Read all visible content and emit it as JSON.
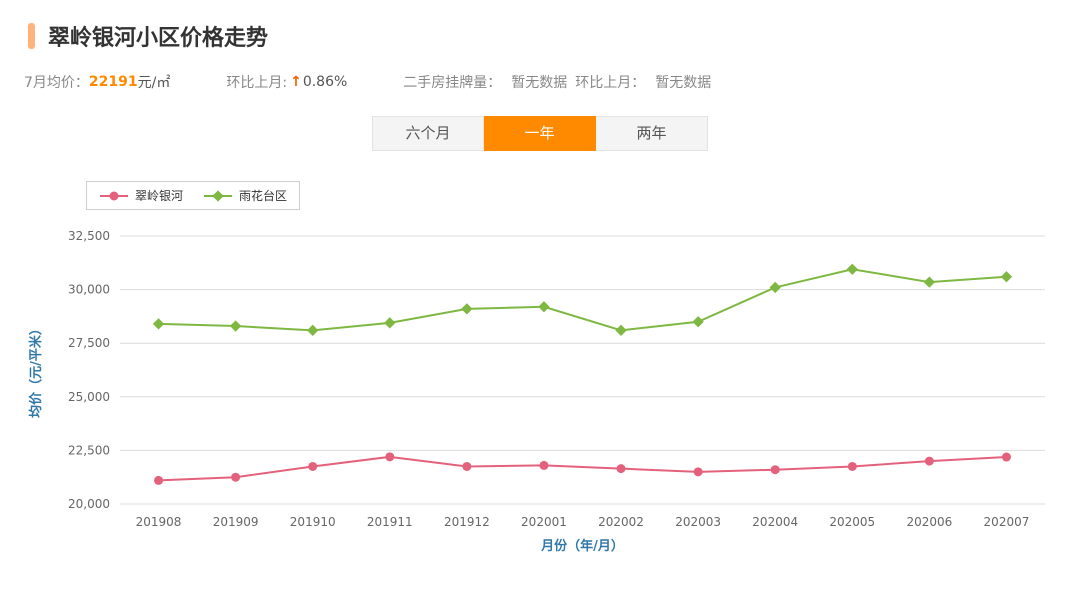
{
  "page": {
    "title": "翠岭银河小区价格走势"
  },
  "stats": {
    "avg_label": "7月均价：",
    "avg_value": "22191",
    "avg_unit": "元/㎡",
    "mom_label": "环比上月:",
    "mom_arrow": "↑",
    "mom_value": "0.86%",
    "listing_label": "二手房挂牌量：",
    "listing_value": "暂无数据",
    "listing_mom_label": "环比上月：",
    "listing_mom_value": "暂无数据"
  },
  "tabs": [
    {
      "label": "六个月",
      "active": false
    },
    {
      "label": "一年",
      "active": true
    },
    {
      "label": "两年",
      "active": false
    }
  ],
  "legend": [
    {
      "label": "翠岭银河",
      "color": "#e4617b",
      "marker": "circle"
    },
    {
      "label": "雨花台区",
      "color": "#7eb842",
      "marker": "diamond"
    }
  ],
  "chart_data": {
    "type": "line",
    "x": [
      "201908",
      "201909",
      "201910",
      "201911",
      "201912",
      "202001",
      "202002",
      "202003",
      "202004",
      "202005",
      "202006",
      "202007"
    ],
    "series": [
      {
        "name": "翠岭银河",
        "color": "#e4617b",
        "marker": "circle",
        "values": [
          21100,
          21250,
          21750,
          22200,
          21750,
          21800,
          21650,
          21500,
          21600,
          21750,
          22000,
          22191
        ]
      },
      {
        "name": "雨花台区",
        "color": "#7eb842",
        "marker": "diamond",
        "values": [
          28400,
          28300,
          28100,
          28450,
          29100,
          29200,
          28100,
          28500,
          30100,
          30950,
          30350,
          30600
        ]
      }
    ],
    "title": "翠岭银河小区价格走势",
    "xlabel": "月份（年/月）",
    "ylabel": "均价（元/平米）",
    "ylim": [
      20000,
      32500
    ],
    "yticks": [
      20000,
      22500,
      25000,
      27500,
      30000,
      32500
    ],
    "grid": "horizontal",
    "legend_position": "top-left"
  },
  "colors": {
    "accent": "#ff8a00",
    "accent_bar": "#ffb27a",
    "axis_label": "#3178a8",
    "grid_line": "#dcdcdc",
    "tick_text": "#666666"
  }
}
